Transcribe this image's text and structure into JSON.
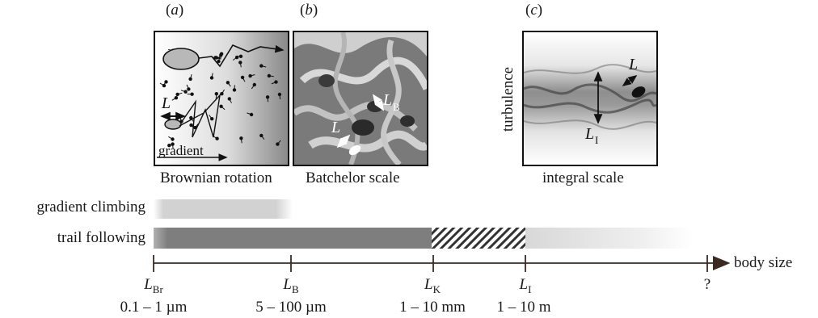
{
  "panels": [
    {
      "id": "a",
      "label": "a",
      "caption": "Brownian rotation",
      "inner_labels": {
        "length": "L",
        "gradient": "gradient"
      }
    },
    {
      "id": "b",
      "label": "b",
      "caption": "Batchelor scale",
      "inner_labels": {
        "length": "L",
        "batchelor": "L",
        "batchelor_sub": "B"
      }
    },
    {
      "id": "c",
      "label": "c",
      "caption": "integral scale",
      "inner_labels": {
        "length": "L",
        "integral": "L",
        "integral_sub": "I",
        "side": "turbulence"
      }
    }
  ],
  "bars": [
    {
      "label": "gradient climbing"
    },
    {
      "label": "trail following"
    }
  ],
  "axis": {
    "label": "body size",
    "ticks": [
      {
        "symbol": "L",
        "sub": "Br",
        "value": "0.1 – 1 µm"
      },
      {
        "symbol": "L",
        "sub": "B",
        "value": "5 – 100 µm"
      },
      {
        "symbol": "L",
        "sub": "K",
        "value": "1 – 10 mm"
      },
      {
        "symbol": "L",
        "sub": "I",
        "value": "1 – 10 m"
      },
      {
        "symbol": "?",
        "sub": "",
        "value": ""
      }
    ]
  },
  "colors": {
    "bar_light": "#d4d4d4",
    "bar_dark": "#808080",
    "axis": "#3a2a22"
  }
}
